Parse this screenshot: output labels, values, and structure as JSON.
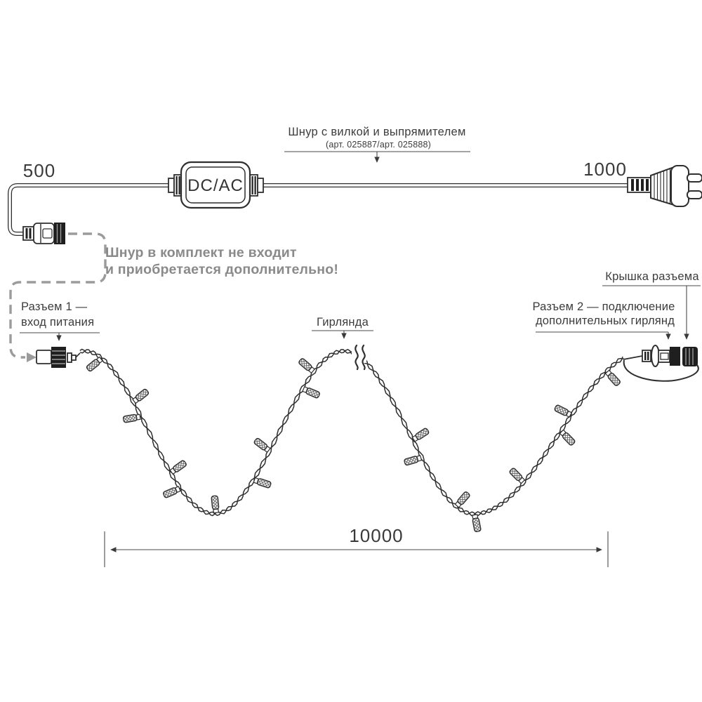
{
  "colors": {
    "line": "#2f2f2f",
    "label": "#3c3c3c",
    "note": "#8a8a8a",
    "dashed": "#9b9b9b"
  },
  "top": {
    "cord_callout_title": "Шнур с вилкой и выпрямителем",
    "cord_callout_sub": "(арт. 025887/арт. 025888)",
    "dim_left": "500",
    "dim_right": "1000",
    "converter_label": "DC/AC"
  },
  "note": {
    "line1": "Шнур в комплект не входит",
    "line2": "и приобретается дополнительно!"
  },
  "callouts": {
    "connector1_line1": "Разъем 1 —",
    "connector1_line2": "вход питания",
    "garland": "Гирлянда",
    "connector2_line1": "Разъем 2 — подключение",
    "connector2_line2": "дополнительных гирлянд",
    "cap": "Крышка разъема"
  },
  "bottom": {
    "dim_total": "10000"
  }
}
